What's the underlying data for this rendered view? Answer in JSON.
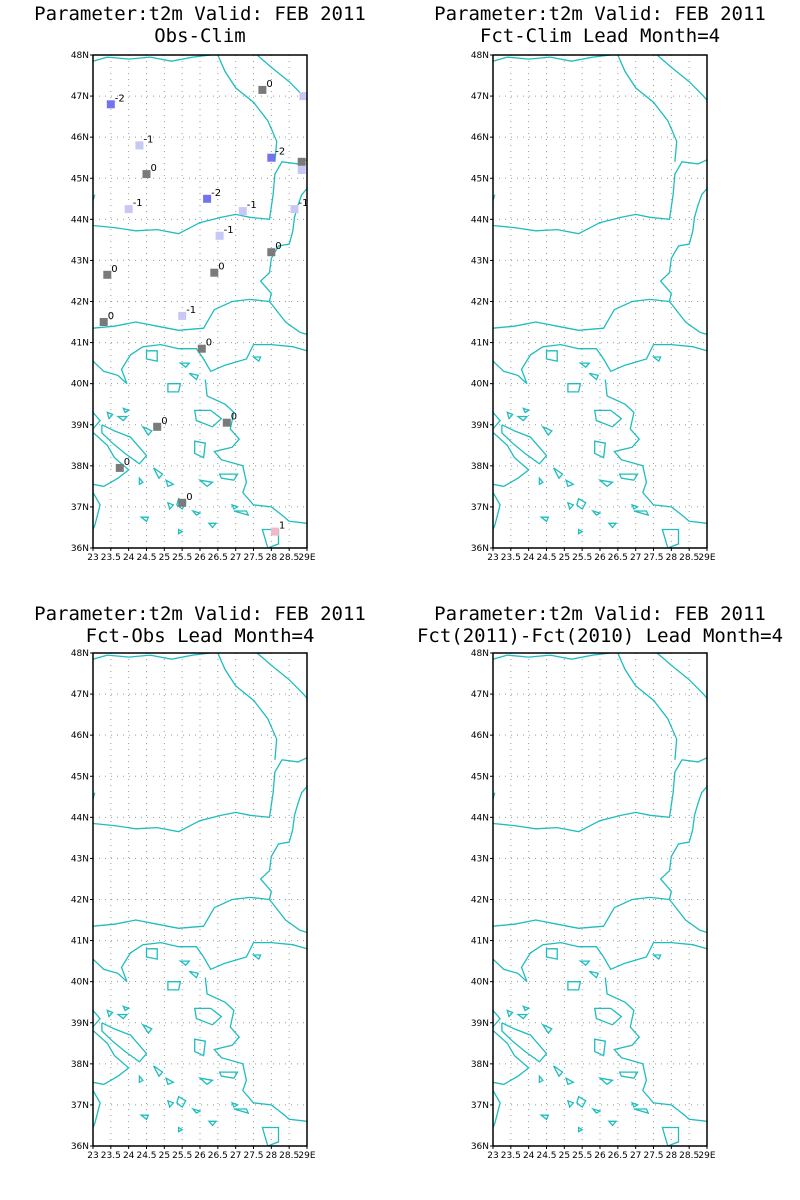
{
  "colors": {
    "coast": "#1fbdbd",
    "value_colors": {
      "-2": "#7373f0",
      "-1": "#c8c8f5",
      "0": "#7a7a7a",
      "1": "#f0b8c8"
    }
  },
  "axes": {
    "lat_labels": [
      "36N",
      "37N",
      "38N",
      "39N",
      "40N",
      "41N",
      "42N",
      "43N",
      "44N",
      "45N",
      "46N",
      "47N",
      "48N"
    ],
    "lon_labels": [
      "23",
      "23.5",
      "24",
      "24.5",
      "25",
      "25.5",
      "26",
      "26.5",
      "27",
      "27.5",
      "28",
      "28.5",
      "29E"
    ],
    "lon_range": [
      23,
      29
    ],
    "lat_range": [
      36,
      48
    ]
  },
  "panels": [
    {
      "title_line1": "Parameter:t2m Valid: FEB 2011",
      "title_line2": "Obs-Clim",
      "stations": [
        {
          "lon": 23.5,
          "lat": 46.8,
          "value": -2,
          "label": "-2"
        },
        {
          "lon": 24.3,
          "lat": 45.8,
          "value": -1,
          "label": "-1"
        },
        {
          "lon": 24.5,
          "lat": 45.1,
          "value": 0,
          "label": "0"
        },
        {
          "lon": 24.0,
          "lat": 44.25,
          "value": -1,
          "label": "-1"
        },
        {
          "lon": 26.2,
          "lat": 44.5,
          "value": -2,
          "label": "-2"
        },
        {
          "lon": 27.2,
          "lat": 44.2,
          "value": -1,
          "label": "-1"
        },
        {
          "lon": 27.75,
          "lat": 47.15,
          "value": 0,
          "label": "0"
        },
        {
          "lon": 28.9,
          "lat": 47.0,
          "value": -1,
          "label": "-1"
        },
        {
          "lon": 28.0,
          "lat": 45.5,
          "value": -2,
          "label": "-2"
        },
        {
          "lon": 28.85,
          "lat": 45.4,
          "value": 0,
          "label": "0"
        },
        {
          "lon": 28.85,
          "lat": 45.2,
          "value": -1,
          "label": "-1"
        },
        {
          "lon": 28.65,
          "lat": 44.25,
          "value": -1,
          "label": "-1"
        },
        {
          "lon": 26.55,
          "lat": 43.6,
          "value": -1,
          "label": "-1"
        },
        {
          "lon": 28.0,
          "lat": 43.2,
          "value": 0,
          "label": "0"
        },
        {
          "lon": 23.4,
          "lat": 42.65,
          "value": 0,
          "label": "0"
        },
        {
          "lon": 26.4,
          "lat": 42.7,
          "value": 0,
          "label": "0"
        },
        {
          "lon": 25.5,
          "lat": 41.65,
          "value": -1,
          "label": "-1"
        },
        {
          "lon": 23.3,
          "lat": 41.5,
          "value": 0,
          "label": "0"
        },
        {
          "lon": 26.05,
          "lat": 40.85,
          "value": 0,
          "label": "0"
        },
        {
          "lon": 26.75,
          "lat": 39.05,
          "value": 0,
          "label": "0"
        },
        {
          "lon": 24.8,
          "lat": 38.95,
          "value": 0,
          "label": "0"
        },
        {
          "lon": 23.75,
          "lat": 37.95,
          "value": 0,
          "label": "0"
        },
        {
          "lon": 25.5,
          "lat": 37.1,
          "value": 0,
          "label": "0"
        },
        {
          "lon": 28.1,
          "lat": 36.4,
          "value": 1,
          "label": "1"
        }
      ]
    },
    {
      "title_line1": "Parameter:t2m Valid: FEB 2011",
      "title_line2": "Fct-Clim Lead Month=4",
      "stations": []
    },
    {
      "title_line1": "Parameter:t2m Valid: FEB 2011",
      "title_line2": "Fct-Obs Lead Month=4",
      "stations": []
    },
    {
      "title_line1": "Parameter:t2m Valid: FEB 2011",
      "title_line2": "Fct(2011)-Fct(2010) Lead Month=4",
      "stations": []
    }
  ]
}
